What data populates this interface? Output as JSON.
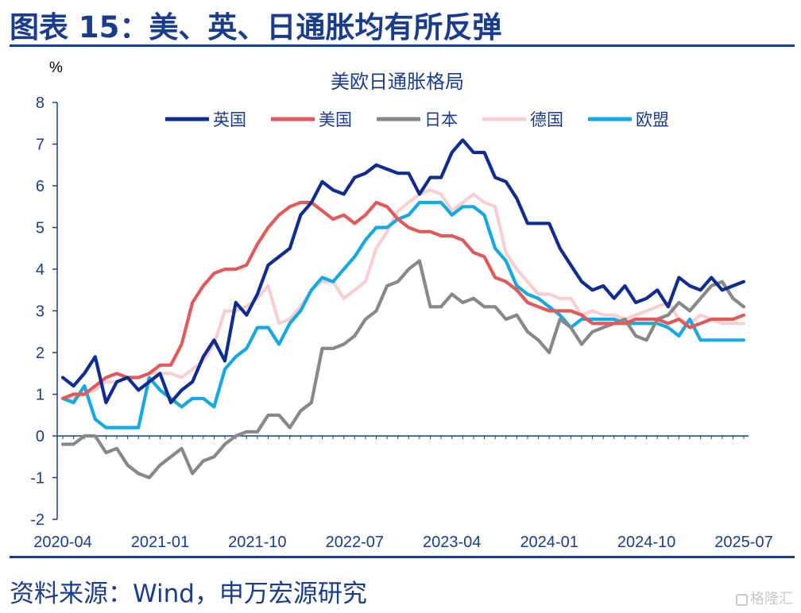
{
  "header": {
    "title": "图表 15：美、英、日通胀均有所反弹"
  },
  "footer": {
    "source": "资料来源：Wind，申万宏源研究",
    "watermark": "格隆汇"
  },
  "chart_data": {
    "type": "line",
    "title": "美欧日通胀格局",
    "unit_label": "%",
    "ylim": [
      -2,
      8
    ],
    "y_ticks": [
      "8",
      "7",
      "6",
      "5",
      "4",
      "3",
      "2",
      "1",
      "0",
      "-1",
      "-2"
    ],
    "x_start": "2020-04",
    "x_end": "2025-07",
    "x_ticks": [
      "2020-04",
      "2021-01",
      "2021-10",
      "2022-07",
      "2023-04",
      "2024-01",
      "2024-10",
      "2025-07"
    ],
    "legend_position": "top",
    "grid": false,
    "series": [
      {
        "name": "英国",
        "color": "#0e2d8f",
        "values": [
          1.4,
          1.2,
          1.5,
          1.9,
          0.8,
          1.3,
          1.4,
          1.1,
          1.3,
          1.5,
          0.8,
          1.1,
          1.3,
          1.9,
          2.3,
          1.8,
          3.2,
          2.9,
          3.4,
          4.1,
          4.3,
          4.5,
          5.3,
          5.6,
          6.1,
          5.9,
          5.8,
          6.2,
          6.3,
          6.5,
          6.4,
          6.3,
          6.3,
          5.8,
          6.2,
          6.2,
          6.8,
          7.1,
          6.8,
          6.8,
          6.2,
          6.1,
          5.7,
          5.1,
          5.1,
          5.1,
          4.5,
          4.1,
          3.7,
          3.5,
          3.6,
          3.3,
          3.6,
          3.2,
          3.3,
          3.5,
          3.1,
          3.8,
          3.6,
          3.5,
          3.8,
          3.5,
          3.6,
          3.7
        ]
      },
      {
        "name": "美国",
        "color": "#e05a5a",
        "values": [
          0.9,
          1.0,
          1.0,
          1.2,
          1.4,
          1.5,
          1.4,
          1.4,
          1.5,
          1.7,
          1.7,
          2.2,
          3.2,
          3.6,
          3.9,
          4.0,
          4.0,
          4.1,
          4.6,
          5.0,
          5.3,
          5.5,
          5.6,
          5.6,
          5.4,
          5.2,
          5.3,
          5.1,
          5.3,
          5.6,
          5.5,
          5.2,
          5.0,
          4.9,
          4.9,
          4.8,
          4.8,
          4.7,
          4.4,
          4.3,
          3.8,
          3.7,
          3.5,
          3.2,
          3.1,
          3.0,
          3.0,
          3.0,
          2.9,
          2.7,
          2.7,
          2.7,
          2.7,
          2.8,
          2.8,
          2.8,
          2.7,
          2.8,
          2.6,
          2.7,
          2.8,
          2.8,
          2.8,
          2.9
        ]
      },
      {
        "name": "日本",
        "color": "#888888",
        "values": [
          -0.2,
          -0.2,
          0.0,
          0.0,
          -0.4,
          -0.3,
          -0.7,
          -0.9,
          -1.0,
          -0.7,
          -0.5,
          -0.3,
          -0.9,
          -0.6,
          -0.5,
          -0.2,
          0.0,
          0.1,
          0.1,
          0.5,
          0.5,
          0.2,
          0.6,
          0.8,
          2.1,
          2.1,
          2.2,
          2.4,
          2.8,
          3.0,
          3.6,
          3.7,
          4.0,
          4.2,
          3.1,
          3.1,
          3.4,
          3.2,
          3.3,
          3.1,
          3.1,
          2.8,
          2.9,
          2.5,
          2.3,
          2.0,
          2.8,
          2.6,
          2.2,
          2.5,
          2.6,
          2.7,
          2.8,
          2.4,
          2.3,
          2.8,
          2.9,
          3.2,
          3.0,
          3.3,
          3.6,
          3.7,
          3.3,
          3.1
        ]
      },
      {
        "name": "德国",
        "color": "#f8cfd0",
        "values": [
          0.9,
          0.9,
          1.0,
          1.1,
          1.3,
          1.3,
          1.4,
          1.4,
          1.5,
          1.5,
          1.5,
          1.4,
          1.6,
          1.8,
          2.2,
          3.0,
          3.0,
          3.1,
          3.3,
          3.6,
          2.7,
          2.8,
          3.1,
          3.5,
          3.7,
          3.7,
          3.3,
          3.5,
          3.7,
          4.5,
          4.9,
          5.4,
          5.6,
          5.8,
          5.9,
          5.8,
          5.4,
          5.6,
          5.8,
          5.6,
          5.5,
          4.4,
          4.0,
          3.7,
          3.4,
          3.4,
          3.3,
          3.3,
          2.9,
          3.0,
          2.9,
          2.9,
          2.8,
          2.9,
          3.0,
          3.1,
          3.2,
          2.8,
          2.7,
          2.9,
          2.8,
          2.7,
          2.7,
          2.7
        ]
      },
      {
        "name": "欧盟",
        "color": "#16a8e0",
        "values": [
          0.9,
          0.8,
          1.2,
          0.4,
          0.2,
          0.2,
          0.2,
          0.2,
          1.4,
          1.1,
          0.9,
          0.7,
          0.9,
          0.9,
          0.7,
          1.6,
          1.9,
          2.1,
          2.6,
          2.6,
          2.2,
          2.7,
          3.0,
          3.5,
          3.8,
          3.7,
          4.0,
          4.3,
          4.7,
          5.0,
          5.0,
          5.2,
          5.3,
          5.6,
          5.6,
          5.6,
          5.3,
          5.5,
          5.5,
          5.3,
          4.5,
          4.2,
          3.6,
          3.4,
          3.3,
          3.1,
          2.9,
          2.6,
          2.8,
          2.8,
          2.8,
          2.8,
          2.7,
          2.7,
          2.7,
          2.7,
          2.6,
          2.4,
          2.8,
          2.3,
          2.3,
          2.3,
          2.3,
          2.3
        ]
      }
    ]
  }
}
